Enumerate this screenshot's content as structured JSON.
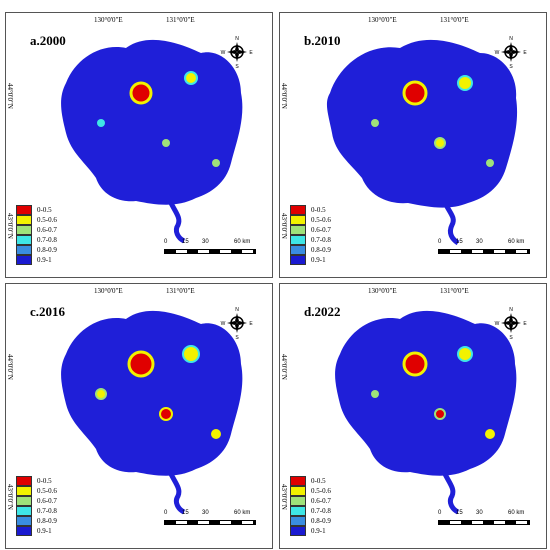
{
  "panels": [
    {
      "label": "a.2000"
    },
    {
      "label": "b.2010"
    },
    {
      "label": "c.2016"
    },
    {
      "label": "d.2022"
    }
  ],
  "axes": {
    "lon": [
      "130°0'0\"E",
      "131°0'0\"E"
    ],
    "lat": [
      "44°0'0\"N",
      "43°0'0\"N"
    ]
  },
  "compass": {
    "n": "N",
    "s": "S",
    "e": "E",
    "w": "W"
  },
  "legend": [
    {
      "label": "0-0.5",
      "color": "#e00000"
    },
    {
      "label": "0.5-0.6",
      "color": "#f2f200"
    },
    {
      "label": "0.6-0.7",
      "color": "#9fe27a"
    },
    {
      "label": "0.7-0.8",
      "color": "#3fe6e6"
    },
    {
      "label": "0.8-0.9",
      "color": "#3a8de0"
    },
    {
      "label": "0.9-1",
      "color": "#1a1ad0"
    }
  ],
  "scale_labels": [
    "0",
    "15",
    "30",
    "60 km"
  ]
}
